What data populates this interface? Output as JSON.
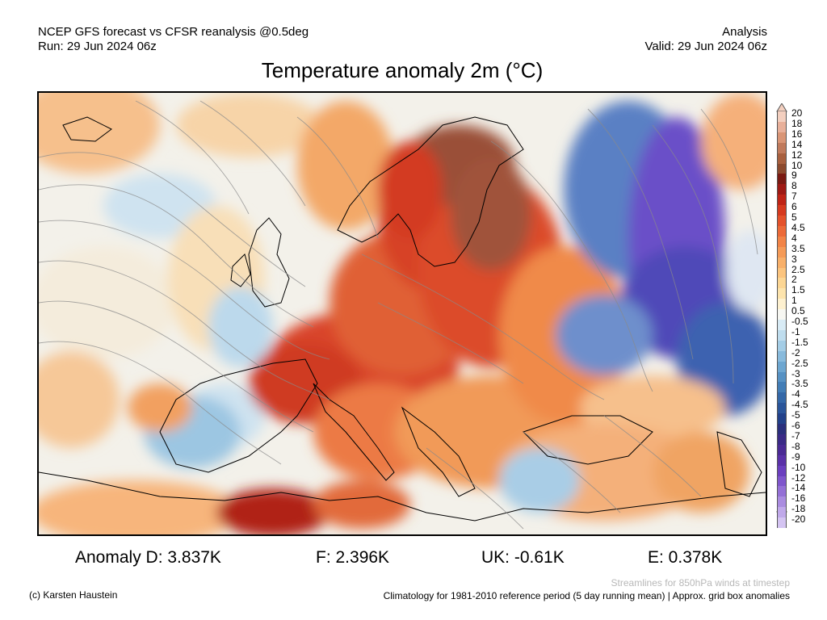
{
  "header": {
    "left_line1": "NCEP GFS forecast vs CFSR reanalysis @0.5deg",
    "left_line2": "Run: 29 Jun 2024 06z",
    "right_line1": "Analysis",
    "right_line2": "Valid: 29 Jun 2024 06z"
  },
  "title": "Temperature anomaly 2m (°C)",
  "colorbar": {
    "labels": [
      "20",
      "18",
      "16",
      "14",
      "12",
      "10",
      "9",
      "8",
      "7",
      "6",
      "5",
      "4.5",
      "4",
      "3.5",
      "3",
      "2.5",
      "2",
      "1.5",
      "1",
      "0.5",
      "-0.5",
      "-1",
      "-1.5",
      "-2",
      "-2.5",
      "-3",
      "-3.5",
      "-4",
      "-4.5",
      "-5",
      "-6",
      "-7",
      "-8",
      "-9",
      "-10",
      "-12",
      "-14",
      "-16",
      "-18",
      "-20"
    ],
    "colors": [
      "#f3cfbf",
      "#e8b09a",
      "#d99576",
      "#c07a5c",
      "#a8603f",
      "#8c4a2e",
      "#7a1a12",
      "#9e1a14",
      "#bf2416",
      "#d63a1f",
      "#e4522b",
      "#ec6a38",
      "#f28447",
      "#f59b58",
      "#f8b06a",
      "#fbc47e",
      "#fcd694",
      "#fde4ad",
      "#fef1d0",
      "#f7f7f2",
      "#d8ebf5",
      "#bfddee",
      "#a4cde6",
      "#88badc",
      "#6da6d0",
      "#5691c3",
      "#427db6",
      "#3468a8",
      "#2a559a",
      "#22418a",
      "#2a2f7c",
      "#3a2a86",
      "#4a2a94",
      "#5a31a8",
      "#6b3fbf",
      "#7f56cc",
      "#9470d6",
      "#aa8ce0",
      "#c0a9ea",
      "#d4c4f2"
    ]
  },
  "stats": {
    "d": "Anomaly D: 3.837K",
    "f": "F: 2.396K",
    "uk": "UK: -0.61K",
    "e": "E: 0.378K"
  },
  "footer": {
    "copyright": "(c) Karsten Haustein",
    "streamlines_note": "Streamlines for 850hPa winds at timestep",
    "climatology_note": "Climatology for 1981-2010 reference period (5 day running mean) | Approx. grid box anomalies"
  },
  "map_colors": {
    "ocean_neutral": "#f2f2f0",
    "light_blue": "#cfe3f0",
    "mid_blue": "#8cbcdc",
    "deep_blue": "#3a5fa8",
    "purple": "#6b4fc8",
    "light_orange": "#f8d8a8",
    "orange": "#f2a060",
    "red": "#d9452a",
    "dark_red": "#b02418",
    "brown": "#9a5038"
  }
}
